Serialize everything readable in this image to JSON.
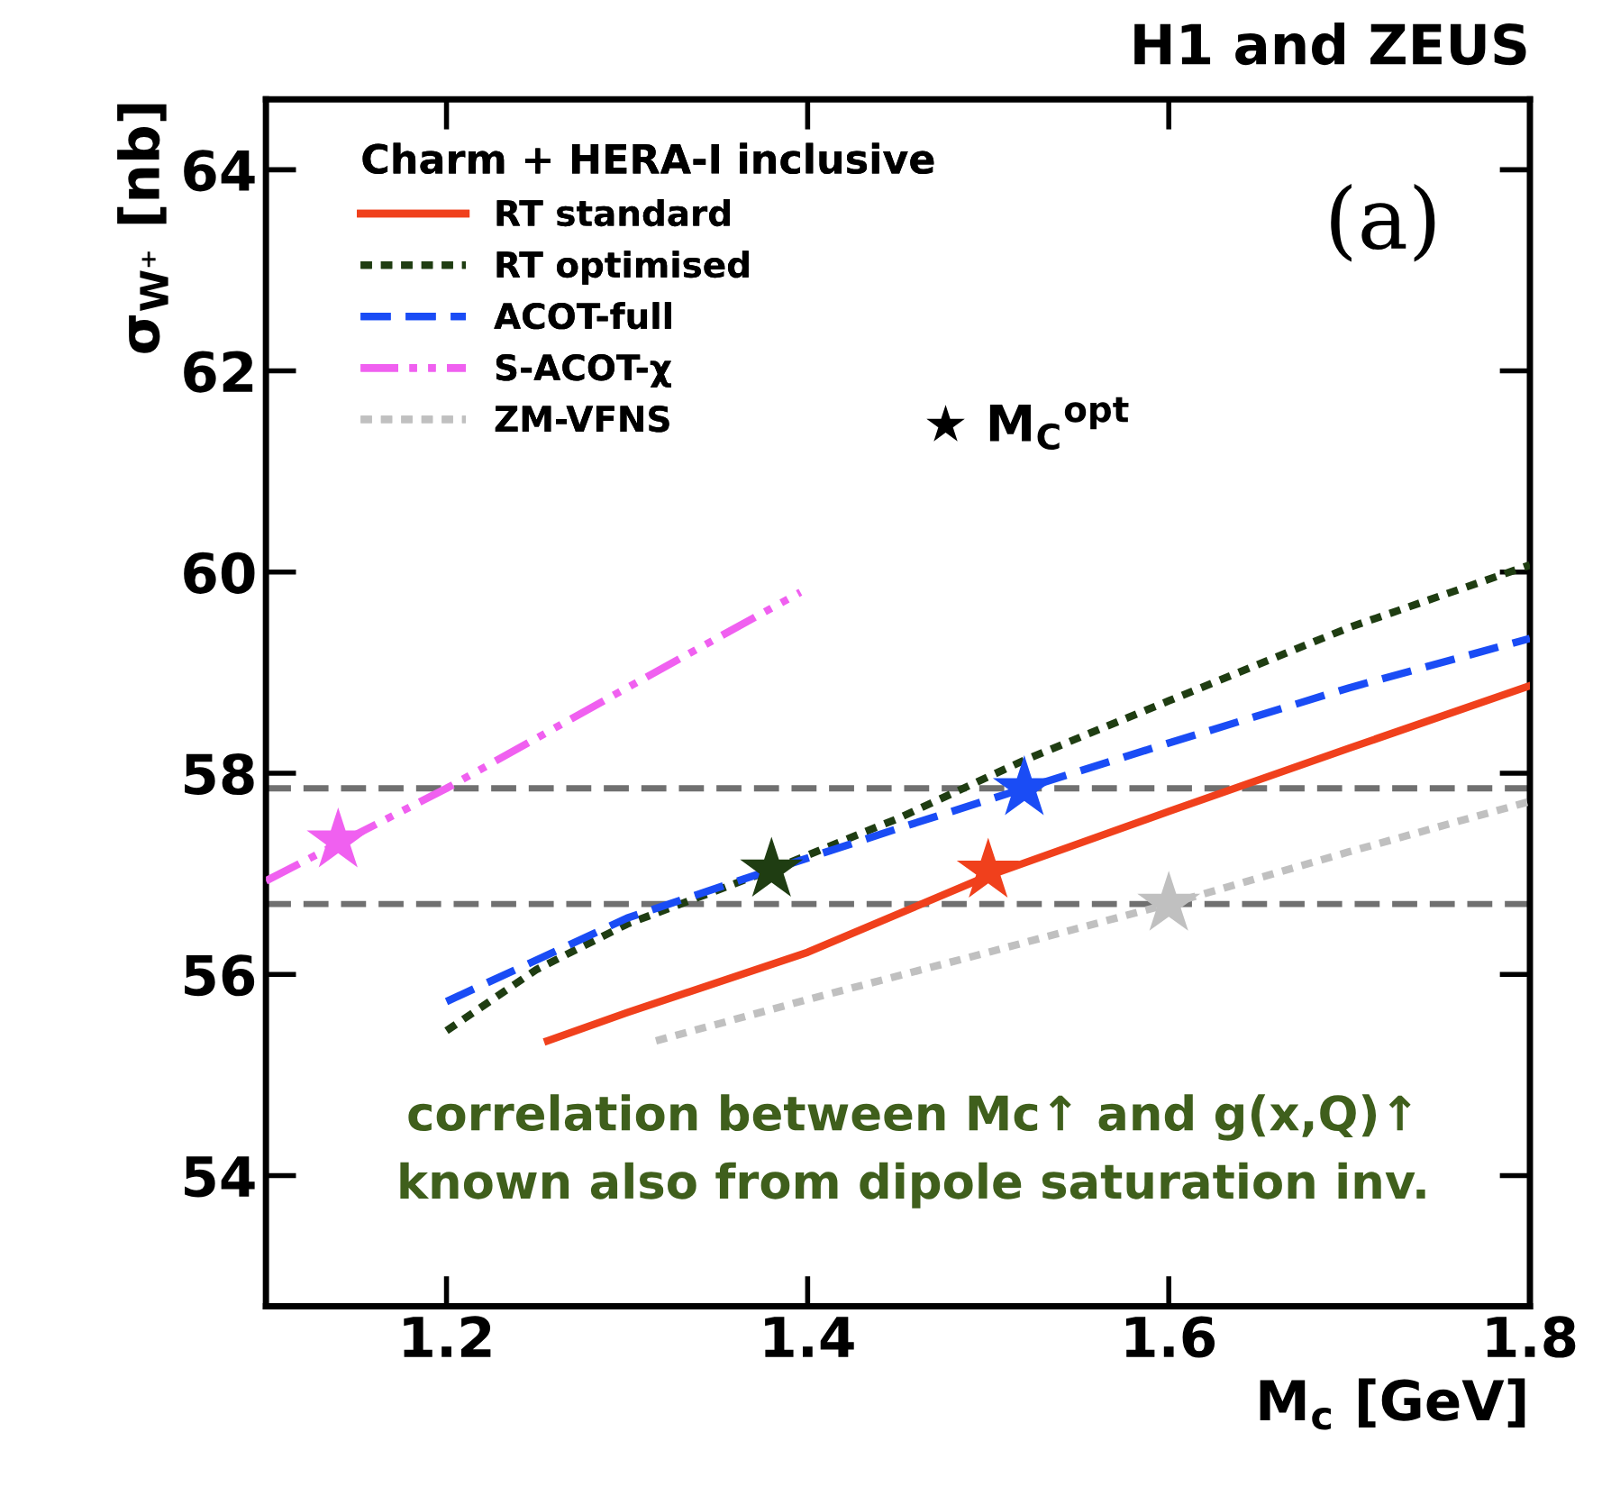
{
  "chart_data": {
    "type": "line",
    "title": "H1 and ZEUS",
    "xlabel": "M$_{c}$ [GeV]",
    "ylabel": "σ$_{W⁺}$ [nb]",
    "legend_title": "Charm + HERA-I inclusive",
    "xlim": [
      1.1,
      1.8
    ],
    "xticks": [
      1.2,
      1.4,
      1.6,
      1.8
    ],
    "ylim": [
      52.7,
      64.7
    ],
    "yticks": [
      54,
      56,
      58,
      60,
      62,
      64
    ],
    "grid": false,
    "legend": "top left",
    "series": [
      {
        "name": "RT standard",
        "color": "#f0401c",
        "line_style": "solid",
        "x": [
          1.256,
          1.3,
          1.4,
          1.5,
          1.6,
          1.7,
          1.8
        ],
        "values": [
          55.34,
          55.62,
          56.22,
          56.98,
          57.62,
          58.25,
          58.87
        ]
      },
      {
        "name": "RT optimised",
        "color": "#1f3d12",
        "line_style": "dotted",
        "x": [
          1.2,
          1.25,
          1.3,
          1.38,
          1.45,
          1.52,
          1.6,
          1.7,
          1.8
        ],
        "values": [
          55.44,
          56.05,
          56.5,
          57.04,
          57.55,
          58.13,
          58.72,
          59.45,
          60.07
        ]
      },
      {
        "name": "ACOT-full",
        "color": "#1a4cf5",
        "line_style": "dashed",
        "x": [
          1.2,
          1.3,
          1.38,
          1.45,
          1.52,
          1.6,
          1.7,
          1.8
        ],
        "values": [
          55.73,
          56.56,
          57.04,
          57.45,
          57.85,
          58.3,
          58.85,
          59.34
        ]
      },
      {
        "name": "S-ACOT-χ",
        "color": "#f060f0",
        "line_style": "dashdot",
        "x": [
          1.1,
          1.14,
          1.2,
          1.3,
          1.396
        ],
        "values": [
          56.93,
          57.3,
          57.85,
          58.85,
          59.8
        ]
      },
      {
        "name": "ZM-VFNS",
        "color": "#c0c0c0",
        "line_style": "dotted",
        "x": [
          1.316,
          1.4,
          1.5,
          1.6,
          1.7,
          1.8
        ],
        "values": [
          55.34,
          55.75,
          56.22,
          56.7,
          57.22,
          57.72
        ]
      },
      {
        "type": "scatter",
        "marker": "star",
        "color": "#000000",
        "colors": [
          "#f060f0",
          "#1f3d12",
          "#f0401c",
          "#1a4cf5",
          "#c0c0c0"
        ],
        "x": [
          1.14,
          1.38,
          1.5,
          1.52,
          1.6
        ],
        "values": [
          57.33,
          57.04,
          57.03,
          57.85,
          56.7
        ]
      }
    ],
    "ref_lines": [
      {
        "axis": "y",
        "value": 57.85,
        "color": "#707070",
        "line_style": "dashed"
      },
      {
        "axis": "y",
        "value": 56.7,
        "color": "#707070",
        "line_style": "dashed"
      }
    ],
    "annotations": [
      "(a)",
      "★ M$_{C}$$^{opt}$",
      "correlation between Mc↑ and g(x,Q)↑\nknown also from dipole saturation inv."
    ]
  }
}
